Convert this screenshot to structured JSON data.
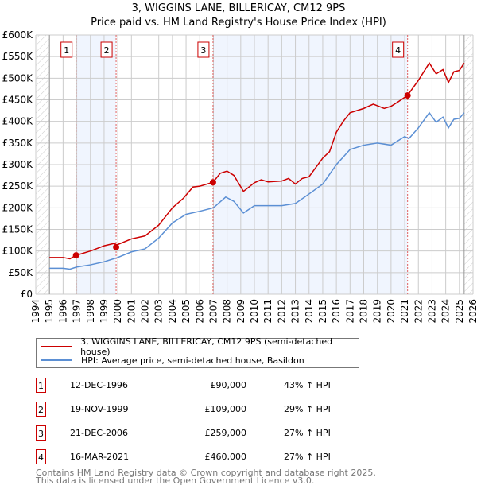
{
  "chart_data": {
    "type": "line",
    "title": "3, WIGGINS LANE, BILLERICAY, CM12 9PS",
    "subtitle": "Price paid vs. HM Land Registry's House Price Index (HPI)",
    "xlim": [
      1994,
      2026
    ],
    "ylim": [
      0,
      600000
    ],
    "y_ticks": [
      "£0",
      "£50K",
      "£100K",
      "£150K",
      "£200K",
      "£250K",
      "£300K",
      "£350K",
      "£400K",
      "£450K",
      "£500K",
      "£550K",
      "£600K"
    ],
    "x_ticks": [
      "1994",
      "1995",
      "1996",
      "1997",
      "1998",
      "1999",
      "2000",
      "2001",
      "2002",
      "2003",
      "2004",
      "2005",
      "2006",
      "2007",
      "2008",
      "2009",
      "2010",
      "2011",
      "2012",
      "2013",
      "2014",
      "2015",
      "2016",
      "2017",
      "2018",
      "2019",
      "2020",
      "2021",
      "2022",
      "2023",
      "2024",
      "2025",
      "2026"
    ],
    "grid": true,
    "data_range": [
      1995,
      2025.35
    ],
    "series": [
      {
        "name": "3, WIGGINS LANE, BILLERICAY, CM12 9PS (semi-detached house)",
        "color": "#cc0000",
        "x": [
          1995,
          1996,
          1996.5,
          1996.95,
          1998,
          1999,
          1999.8,
          1999.9,
          2000,
          2001,
          2002,
          2003,
          2004,
          2004.8,
          2005.5,
          2006,
          2006.97,
          2007.5,
          2008,
          2008.5,
          2009.2,
          2010,
          2010.5,
          2011,
          2012,
          2012.5,
          2013,
          2013.5,
          2014,
          2015,
          2015.5,
          2016,
          2016.5,
          2017,
          2018,
          2018.7,
          2019.5,
          2020,
          2020.5,
          2021.2,
          2022,
          2022.8,
          2023.3,
          2023.8,
          2024.2,
          2024.6,
          2025,
          2025.35
        ],
        "y": [
          85000,
          85000,
          82000,
          90000,
          100000,
          112000,
          118000,
          110000,
          115000,
          128000,
          135000,
          160000,
          200000,
          222000,
          248000,
          250000,
          259000,
          280000,
          285000,
          275000,
          238000,
          258000,
          265000,
          260000,
          262000,
          268000,
          255000,
          268000,
          272000,
          315000,
          330000,
          375000,
          400000,
          420000,
          430000,
          440000,
          430000,
          435000,
          445000,
          460000,
          495000,
          535000,
          510000,
          520000,
          490000,
          515000,
          518000,
          535000
        ]
      },
      {
        "name": "HPI: Average price, semi-detached house, Basildon",
        "color": "#5b8fd4",
        "x": [
          1995,
          1996,
          1996.5,
          1997,
          1998,
          1999,
          2000,
          2001,
          2002,
          2003,
          2004,
          2005,
          2006,
          2007,
          2007.9,
          2008.5,
          2009.2,
          2010,
          2011,
          2012,
          2013,
          2014,
          2015,
          2016,
          2017,
          2018,
          2019,
          2020,
          2020.5,
          2021,
          2021.3,
          2022,
          2022.8,
          2023.3,
          2023.8,
          2024.2,
          2024.6,
          2025,
          2025.35
        ],
        "y": [
          60000,
          60000,
          58000,
          63000,
          68000,
          75000,
          85000,
          98000,
          105000,
          130000,
          165000,
          185000,
          192000,
          200000,
          225000,
          215000,
          188000,
          205000,
          205000,
          205000,
          210000,
          232000,
          255000,
          300000,
          335000,
          345000,
          350000,
          345000,
          355000,
          365000,
          360000,
          385000,
          420000,
          398000,
          410000,
          385000,
          405000,
          407000,
          420000
        ]
      }
    ],
    "sales": [
      {
        "label": "1",
        "x": 1996.95,
        "y": 90000,
        "date": "12-DEC-1996",
        "price": "£90,000",
        "hpi": "43% ↑ HPI"
      },
      {
        "label": "2",
        "x": 1999.88,
        "y": 109000,
        "date": "19-NOV-1999",
        "price": "£109,000",
        "hpi": "29% ↑ HPI"
      },
      {
        "label": "3",
        "x": 2006.97,
        "y": 259000,
        "date": "21-DEC-2006",
        "price": "£259,000",
        "hpi": "27% ↑ HPI"
      },
      {
        "label": "4",
        "x": 2021.21,
        "y": 460000,
        "date": "16-MAR-2021",
        "price": "£460,000",
        "hpi": "27% ↑ HPI"
      }
    ],
    "shaded_ranges": [
      [
        1996.95,
        1999.88
      ],
      [
        2006.97,
        2021.21
      ]
    ]
  },
  "legend": {
    "red": "3, WIGGINS LANE, BILLERICAY, CM12 9PS (semi-detached house)",
    "blue": "HPI: Average price, semi-detached house, Basildon"
  },
  "footer": {
    "line1": "Contains HM Land Registry data © Crown copyright and database right 2025.",
    "line2": "This data is licensed under the Open Government Licence v3.0."
  }
}
